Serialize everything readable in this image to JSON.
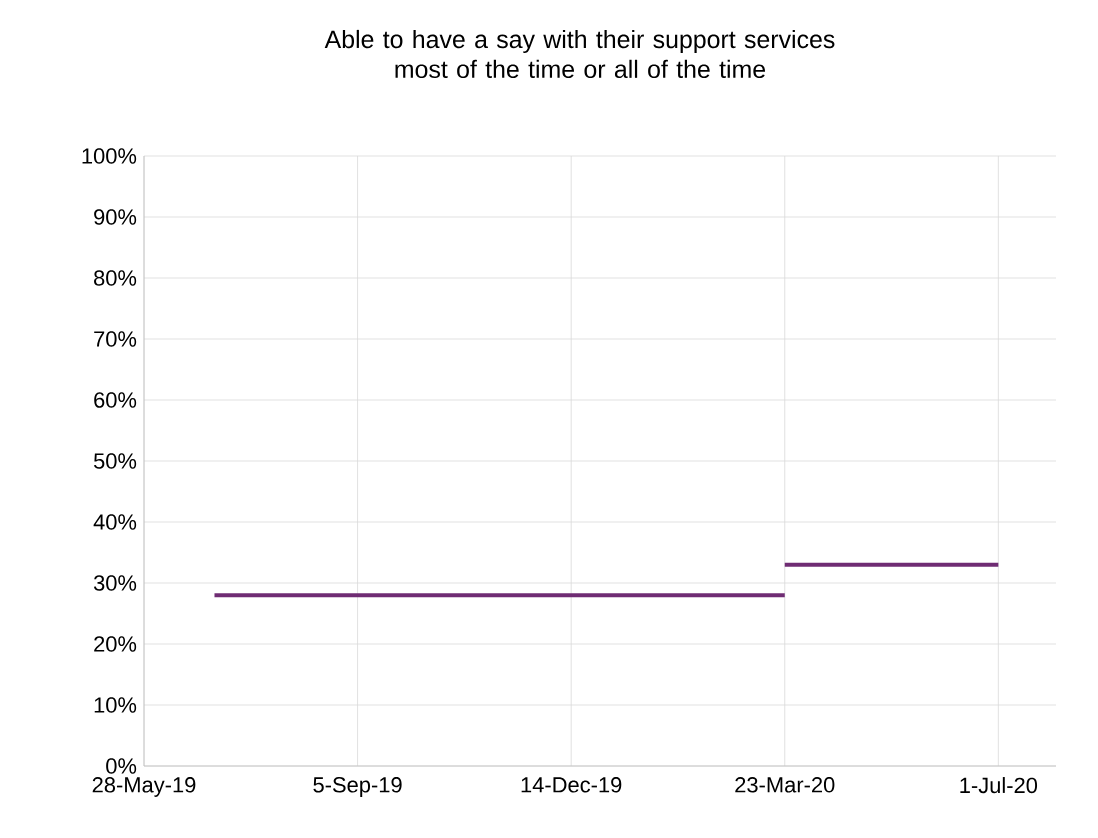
{
  "chart_data": {
    "type": "line",
    "title": "Able to have a say with their support services\nmost of the time or all of the time",
    "series": [
      {
        "color": "#6f2c73",
        "x": [
          "2019-06-30",
          "2020-03-23"
        ],
        "values": [
          28,
          28
        ]
      },
      {
        "color": "#6f2c73",
        "x": [
          "2020-03-23",
          "2020-07-01"
        ],
        "values": [
          33,
          33
        ]
      }
    ],
    "xlim": [
      "2019-05-28",
      "2020-07-28"
    ],
    "xticks": [
      {
        "value": "2019-05-28",
        "label": "28-May-19"
      },
      {
        "value": "2019-09-05",
        "label": "5-Sep-19"
      },
      {
        "value": "2019-12-14",
        "label": "14-Dec-19"
      },
      {
        "value": "2020-03-23",
        "label": "23-Mar-20"
      },
      {
        "value": "2020-07-01",
        "label": "1-Jul-20"
      }
    ],
    "ylim": [
      0,
      100
    ],
    "yticks": [
      {
        "value": 0,
        "label": "0%"
      },
      {
        "value": 10,
        "label": "10%"
      },
      {
        "value": 20,
        "label": "20%"
      },
      {
        "value": 30,
        "label": "30%"
      },
      {
        "value": 40,
        "label": "40%"
      },
      {
        "value": 50,
        "label": "50%"
      },
      {
        "value": 60,
        "label": "60%"
      },
      {
        "value": 70,
        "label": "70%"
      },
      {
        "value": 80,
        "label": "80%"
      },
      {
        "value": 90,
        "label": "90%"
      },
      {
        "value": 100,
        "label": "100%"
      }
    ],
    "grid": true,
    "marker": "none",
    "line_style": "solid"
  }
}
